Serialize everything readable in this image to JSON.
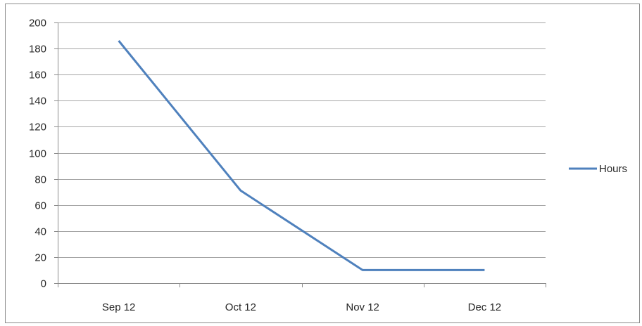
{
  "chart_data": {
    "type": "line",
    "categories": [
      "Sep 12",
      "Oct 12",
      "Nov 12",
      "Dec 12"
    ],
    "series": [
      {
        "name": "Hours",
        "values": [
          186,
          71,
          10,
          10
        ],
        "color": "#4f81bd"
      }
    ],
    "ylim": [
      0,
      200
    ],
    "yticks": [
      0,
      20,
      40,
      60,
      80,
      100,
      120,
      140,
      160,
      180,
      200
    ],
    "grid": true,
    "legend": "right"
  },
  "colors": {
    "gridline": "#a6a6a6",
    "axis": "#8c8c8c",
    "text": "#262626"
  }
}
